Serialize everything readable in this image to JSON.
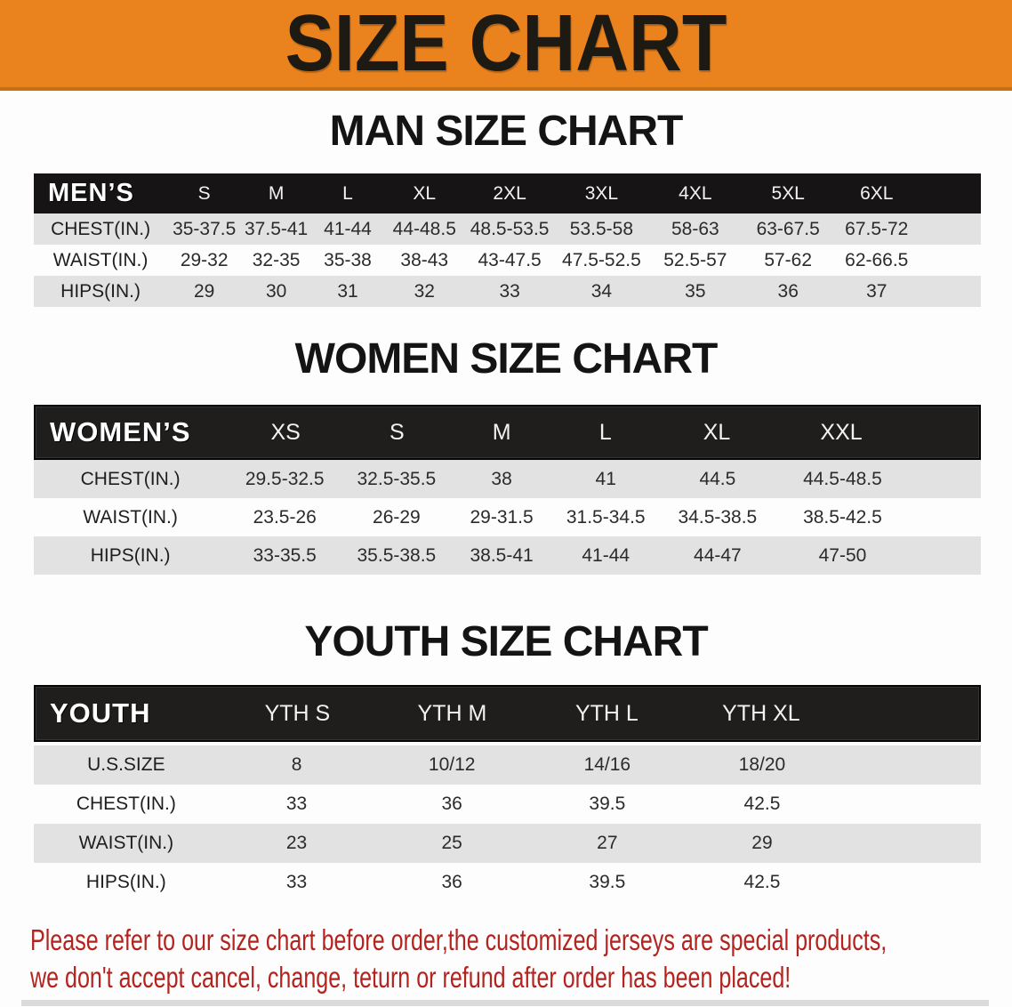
{
  "banner": {
    "title": "SIZE CHART"
  },
  "sections": {
    "men": {
      "heading": "MAN SIZE CHART"
    },
    "women": {
      "heading": "WOMEN SIZE CHART"
    },
    "youth": {
      "heading": "YOUTH SIZE CHART"
    }
  },
  "tables": {
    "men": {
      "header_label": "MEN’S",
      "columns": [
        "S",
        "M",
        "L",
        "XL",
        "2XL",
        "3XL",
        "4XL",
        "5XL",
        "6XL"
      ],
      "rows": [
        {
          "label": "CHEST(IN.)",
          "values": [
            "35-37.5",
            "37.5-41",
            "41-44",
            "44-48.5",
            "48.5-53.5",
            "53.5-58",
            "58-63",
            "63-67.5",
            "67.5-72"
          ]
        },
        {
          "label": "WAIST(IN.)",
          "values": [
            "29-32",
            "32-35",
            "35-38",
            "38-43",
            "43-47.5",
            "47.5-52.5",
            "52.5-57",
            "57-62",
            "62-66.5"
          ]
        },
        {
          "label": "HIPS(IN.)",
          "values": [
            "29",
            "30",
            "31",
            "32",
            "33",
            "34",
            "35",
            "36",
            "37"
          ]
        }
      ]
    },
    "women": {
      "header_label": "WOMEN’S",
      "columns": [
        "XS",
        "S",
        "M",
        "L",
        "XL",
        "XXL"
      ],
      "rows": [
        {
          "label": "CHEST(IN.)",
          "values": [
            "29.5-32.5",
            "32.5-35.5",
            "38",
            "41",
            "44.5",
            "44.5-48.5"
          ]
        },
        {
          "label": "WAIST(IN.)",
          "values": [
            "23.5-26",
            "26-29",
            "29-31.5",
            "31.5-34.5",
            "34.5-38.5",
            "38.5-42.5"
          ]
        },
        {
          "label": "HIPS(IN.)",
          "values": [
            "33-35.5",
            "35.5-38.5",
            "38.5-41",
            "41-44",
            "44-47",
            "47-50"
          ]
        }
      ]
    },
    "youth": {
      "header_label": "YOUTH",
      "columns": [
        "YTH S",
        "YTH M",
        "YTH L",
        "YTH XL"
      ],
      "rows": [
        {
          "label": "U.S.SIZE",
          "values": [
            "8",
            "10/12",
            "14/16",
            "18/20"
          ]
        },
        {
          "label": "CHEST(IN.)",
          "values": [
            "33",
            "36",
            "39.5",
            "42.5"
          ]
        },
        {
          "label": "WAIST(IN.)",
          "values": [
            "23",
            "25",
            "27",
            "29"
          ]
        },
        {
          "label": "HIPS(IN.)",
          "values": [
            "33",
            "36",
            "39.5",
            "42.5"
          ]
        }
      ]
    }
  },
  "disclaimer": {
    "line1": "Please refer to our size chart before order,the customized jerseys are special products,",
    "line2": "we don't accept cancel, change, teturn or refund after order has been placed!"
  },
  "colors": {
    "banner_orange": "#EA831E",
    "header_black": "#161414",
    "row_gray": "#E2E2E2",
    "row_white": "#FDFDFD",
    "disclaimer_red": "#B3241F"
  }
}
